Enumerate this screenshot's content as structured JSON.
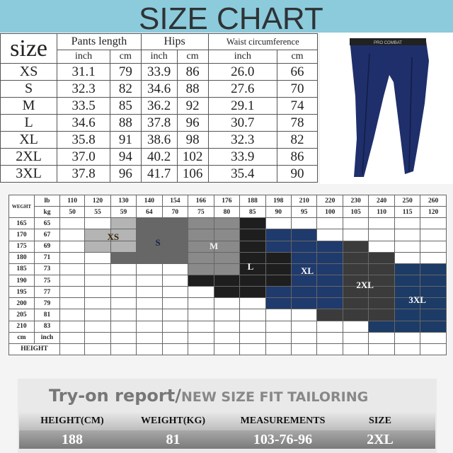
{
  "header": {
    "title": "SIZE CHART"
  },
  "size_table": {
    "corner": "size",
    "groups": [
      "Pants length",
      "Hips",
      "Waist circumference"
    ],
    "units": [
      "inch",
      "cm",
      "inch",
      "cm",
      "inch",
      "cm"
    ],
    "rows": [
      {
        "size": "XS",
        "values": [
          "31.1",
          "79",
          "33.9",
          "86",
          "26.0",
          "66"
        ]
      },
      {
        "size": "S",
        "values": [
          "32.3",
          "82",
          "34.6",
          "88",
          "27.6",
          "70"
        ]
      },
      {
        "size": "M",
        "values": [
          "33.5",
          "85",
          "36.2",
          "92",
          "29.1",
          "74"
        ]
      },
      {
        "size": "L",
        "values": [
          "34.6",
          "88",
          "37.8",
          "96",
          "30.7",
          "78"
        ]
      },
      {
        "size": "XL",
        "values": [
          "35.8",
          "91",
          "38.6",
          "98",
          "32.3",
          "82"
        ]
      },
      {
        "size": "2XL",
        "values": [
          "37.0",
          "94",
          "40.2",
          "102",
          "33.9",
          "86"
        ]
      },
      {
        "size": "3XL",
        "values": [
          "37.8",
          "96",
          "41.7",
          "106",
          "35.4",
          "90"
        ]
      }
    ]
  },
  "product_image": {
    "label": "PRO COMBAT",
    "color": "#1f2f6b"
  },
  "fit_grid": {
    "weight_label": "WEGHT",
    "lb_label": "lb",
    "kg_label": "kg",
    "cm_label": "cm",
    "inch_label": "inch",
    "height_label": "HEIGHT",
    "lb": [
      "110",
      "120",
      "130",
      "140",
      "154",
      "166",
      "176",
      "188",
      "198",
      "210",
      "220",
      "230",
      "240",
      "250",
      "260"
    ],
    "kg": [
      "50",
      "55",
      "59",
      "64",
      "70",
      "75",
      "80",
      "85",
      "90",
      "95",
      "100",
      "105",
      "110",
      "115",
      "120"
    ],
    "heights": [
      {
        "cm": "165",
        "inch": "65"
      },
      {
        "cm": "170",
        "inch": "67"
      },
      {
        "cm": "175",
        "inch": "69"
      },
      {
        "cm": "180",
        "inch": "71"
      },
      {
        "cm": "185",
        "inch": "73"
      },
      {
        "cm": "190",
        "inch": "75"
      },
      {
        "cm": "195",
        "inch": "77"
      },
      {
        "cm": "200",
        "inch": "79"
      },
      {
        "cm": "205",
        "inch": "81"
      },
      {
        "cm": "210",
        "inch": "83"
      }
    ],
    "matrix": [
      [
        "",
        "",
        "XS",
        "S",
        "S",
        "M",
        "M",
        "L",
        "",
        "",
        "",
        "",
        "",
        "",
        ""
      ],
      [
        "",
        "XS",
        "XS",
        "S",
        "S",
        "M",
        "M",
        "L",
        "XL",
        "XL",
        "",
        "",
        "",
        "",
        ""
      ],
      [
        "",
        "XS",
        "XS",
        "S",
        "S",
        "M",
        "M",
        "L",
        "XL",
        "XL",
        "XL",
        "2XL",
        "",
        "",
        ""
      ],
      [
        "",
        "",
        "S",
        "S",
        "S",
        "M",
        "M",
        "L",
        "L",
        "XL",
        "XL",
        "2XL",
        "2XL",
        "",
        ""
      ],
      [
        "",
        "",
        "",
        "",
        "",
        "M",
        "M",
        "L",
        "L",
        "XL",
        "XL",
        "2XL",
        "2XL",
        "3XL",
        "3XL"
      ],
      [
        "",
        "",
        "",
        "",
        "",
        "L",
        "L",
        "L",
        "L",
        "XL",
        "XL",
        "2XL",
        "2XL",
        "3XL",
        "3XL"
      ],
      [
        "",
        "",
        "",
        "",
        "",
        "",
        "L",
        "L",
        "XL",
        "XL",
        "XL",
        "2XL",
        "2XL",
        "3XL",
        "3XL"
      ],
      [
        "",
        "",
        "",
        "",
        "",
        "",
        "",
        "",
        "XL",
        "XL",
        "XL",
        "2XL",
        "2XL",
        "3XL",
        "3XL"
      ],
      [
        "",
        "",
        "",
        "",
        "",
        "",
        "",
        "",
        "",
        "",
        "2XL",
        "2XL",
        "2XL",
        "3XL",
        "3XL"
      ],
      [
        "",
        "",
        "",
        "",
        "",
        "",
        "",
        "",
        "",
        "",
        "",
        "",
        "3XL",
        "3XL",
        "3XL"
      ]
    ],
    "sizes": [
      "XS",
      "S",
      "M",
      "L",
      "XL",
      "2XL",
      "3XL"
    ],
    "colors": {
      "XS": "#b4b4b4",
      "S": "#676767",
      "M": "#8a8a8a",
      "L": "#1e1e1e",
      "XL": "#1f3a6c",
      "2XL": "#3b3b3b",
      "3XL": "#1c3b66"
    },
    "label_colors": {
      "XS": "#3a2608",
      "S": "#1b2440",
      "M": "#f0f0f0",
      "L": "#ffffff",
      "XL": "#ffffff",
      "2XL": "#ffffff",
      "3XL": "#ffffff"
    }
  },
  "report": {
    "title": "Try-on report/",
    "subtitle": "NEW SIZE FIT TAILORING",
    "headers": [
      "HEIGHT(CM)",
      "WEIGHT(KG)",
      "MEASUREMENTS",
      "SIZE"
    ],
    "values": [
      "188",
      "81",
      "103-76-96",
      "2XL"
    ]
  }
}
